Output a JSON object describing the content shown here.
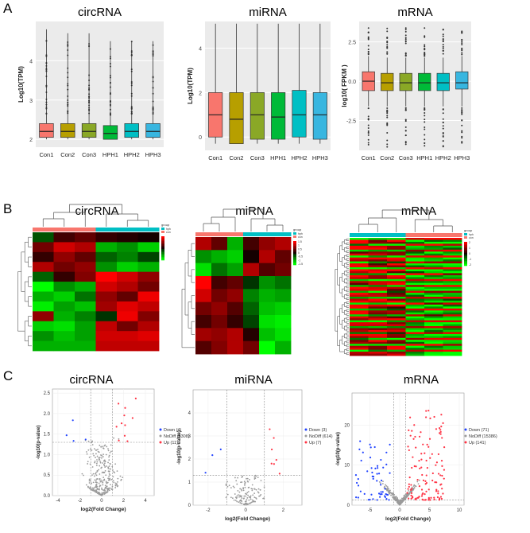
{
  "panels": {
    "A": "A",
    "B": "B",
    "C": "C"
  },
  "colors": {
    "box": [
      "#f8766d",
      "#b79f00",
      "#8aa826",
      "#00ba38",
      "#00bfc4",
      "#38b6e0"
    ],
    "heat_low": "#00ff00",
    "heat_high": "#ff0000",
    "group_con": "#f8766d",
    "group_hph": "#00bfc4",
    "down": "#2244ff",
    "up": "#ff3344",
    "nodiff": "#9a9a9a"
  },
  "chart_data": [
    {
      "type": "box",
      "panel": "A",
      "title": "circRNA",
      "ylabel": "Log10(TPM)",
      "yticks": [
        "2",
        "3",
        "4"
      ],
      "ylim": [
        1.8,
        5
      ],
      "categories": [
        "Con1",
        "Con2",
        "Con3",
        "HPH1",
        "HPH2",
        "HPH3"
      ],
      "boxes": [
        {
          "whisker_low": 2.0,
          "q1": 2.05,
          "median": 2.2,
          "q3": 2.4,
          "whisker_high": 4.8
        },
        {
          "whisker_low": 2.0,
          "q1": 2.05,
          "median": 2.2,
          "q3": 2.4,
          "whisker_high": 4.7
        },
        {
          "whisker_low": 2.0,
          "q1": 2.05,
          "median": 2.2,
          "q3": 2.4,
          "whisker_high": 4.7
        },
        {
          "whisker_low": 2.0,
          "q1": 2.0,
          "median": 2.15,
          "q3": 2.35,
          "whisker_high": 4.5
        },
        {
          "whisker_low": 2.0,
          "q1": 2.05,
          "median": 2.2,
          "q3": 2.4,
          "whisker_high": 4.5
        },
        {
          "whisker_low": 2.0,
          "q1": 2.05,
          "median": 2.2,
          "q3": 2.4,
          "whisker_high": 4.5
        }
      ]
    },
    {
      "type": "box",
      "panel": "A",
      "title": "miRNA",
      "ylabel": "Log10(TPM)",
      "yticks": [
        "0",
        "2",
        "4"
      ],
      "ylim": [
        -0.6,
        5.2
      ],
      "categories": [
        "Con1",
        "Con2",
        "Con3",
        "HPH1",
        "HPH2",
        "HPH3"
      ],
      "boxes": [
        {
          "whisker_low": -0.3,
          "q1": 0.0,
          "median": 1.0,
          "q3": 2.0,
          "whisker_high": 5.1
        },
        {
          "whisker_low": -0.3,
          "q1": -0.3,
          "median": 0.8,
          "q3": 2.0,
          "whisker_high": 5.1
        },
        {
          "whisker_low": -0.3,
          "q1": -0.1,
          "median": 1.0,
          "q3": 2.0,
          "whisker_high": 5.1
        },
        {
          "whisker_low": -0.3,
          "q1": -0.1,
          "median": 0.9,
          "q3": 2.0,
          "whisker_high": 5.1
        },
        {
          "whisker_low": -0.3,
          "q1": 0.0,
          "median": 1.0,
          "q3": 2.1,
          "whisker_high": 5.1
        },
        {
          "whisker_low": -0.3,
          "q1": -0.1,
          "median": 1.0,
          "q3": 2.0,
          "whisker_high": 5.1
        }
      ]
    },
    {
      "type": "box",
      "panel": "A",
      "title": "mRNA",
      "ylabel": "log10( FPKM )",
      "yticks": [
        "-2.5",
        "0.0",
        "2.5"
      ],
      "ylim": [
        -4.4,
        3.8
      ],
      "categories": [
        "Con1",
        "Con2",
        "Con3",
        "HPH1",
        "HPH2",
        "HPH3"
      ],
      "boxes": [
        {
          "whisker_low": -1.6,
          "q1": -0.6,
          "median": 0.0,
          "q3": 0.6,
          "whisker_high": 1.6
        },
        {
          "whisker_low": -1.6,
          "q1": -0.6,
          "median": -0.1,
          "q3": 0.5,
          "whisker_high": 1.5
        },
        {
          "whisker_low": -1.6,
          "q1": -0.6,
          "median": -0.1,
          "q3": 0.5,
          "whisker_high": 1.5
        },
        {
          "whisker_low": -1.6,
          "q1": -0.6,
          "median": -0.1,
          "q3": 0.5,
          "whisker_high": 1.5
        },
        {
          "whisker_low": -1.6,
          "q1": -0.6,
          "median": -0.1,
          "q3": 0.5,
          "whisker_high": 1.5
        },
        {
          "whisker_low": -1.6,
          "q1": -0.5,
          "median": -0.1,
          "q3": 0.6,
          "whisker_high": 1.6
        }
      ]
    },
    {
      "type": "heatmap",
      "panel": "B",
      "title": "circRNA",
      "legend_title": "group",
      "legend_labels": [
        "hph",
        "con"
      ],
      "scale_labels": [],
      "values": [
        [
          -0.4,
          0.3,
          0.5,
          0.2,
          0.1,
          0.0
        ],
        [
          0.6,
          1.2,
          1.0,
          -1.0,
          -0.8,
          -1.2
        ],
        [
          0.2,
          0.8,
          0.5,
          -0.5,
          -0.7,
          -0.3
        ],
        [
          1.0,
          0.6,
          0.8,
          -0.8,
          -1.2,
          -1.0
        ],
        [
          -0.5,
          0.2,
          0.7,
          1.5,
          1.2,
          0.8
        ],
        [
          -1.5,
          -0.8,
          -1.0,
          1.2,
          1.0,
          0.6
        ],
        [
          -1.0,
          -1.2,
          -0.6,
          0.8,
          0.5,
          1.4
        ],
        [
          -1.4,
          -0.9,
          -1.1,
          0.9,
          1.3,
          1.1
        ],
        [
          0.8,
          -1.0,
          -0.7,
          -0.2,
          1.4,
          0.7
        ],
        [
          -1.2,
          -1.3,
          -0.9,
          1.1,
          0.6,
          1.0
        ],
        [
          -0.8,
          -1.1,
          -0.9,
          1.2,
          1.2,
          1.3
        ],
        [
          -1.0,
          -1.0,
          -1.0,
          1.1,
          1.1,
          1.1
        ]
      ]
    },
    {
      "type": "heatmap",
      "panel": "B",
      "title": "miRNA",
      "legend_title": "group",
      "legend_labels": [
        "hph",
        "con"
      ],
      "scale_labels": [
        "1.5",
        "1",
        "0.5",
        "0",
        "-0.5",
        "-1",
        "-1.5"
      ],
      "values": [
        [
          1.0,
          0.5,
          -1.0,
          0.3,
          0.8,
          1.0
        ],
        [
          -0.8,
          -1.0,
          -1.2,
          0.0,
          1.0,
          0.5
        ],
        [
          -1.3,
          -0.6,
          -0.9,
          1.0,
          0.4,
          0.6
        ],
        [
          1.5,
          0.3,
          0.5,
          -0.2,
          -0.8,
          -0.6
        ],
        [
          1.2,
          0.6,
          0.8,
          -0.7,
          -1.0,
          -0.9
        ],
        [
          0.6,
          0.8,
          0.4,
          -0.5,
          -1.1,
          -1.2
        ],
        [
          0.3,
          0.6,
          0.2,
          -0.3,
          -1.3,
          -1.4
        ],
        [
          0.9,
          0.8,
          1.0,
          0.1,
          -1.1,
          -1.3
        ],
        [
          0.4,
          0.7,
          1.0,
          0.6,
          -1.5,
          -1.0
        ]
      ]
    },
    {
      "type": "heatmap",
      "panel": "B",
      "title": "mRNA",
      "legend_title": "group",
      "legend_labels": [
        "hph",
        "con"
      ],
      "scale_labels": [
        "2",
        "1",
        "0",
        "-1",
        "-2"
      ],
      "rows": 60,
      "cols": 6
    },
    {
      "type": "scatter",
      "panel": "C",
      "title": "circRNA",
      "xlabel": "log2(Fold Change)",
      "ylabel": "-log10(p-value)",
      "xlim": [
        -4.5,
        4.8
      ],
      "ylim": [
        0,
        2.6
      ],
      "xticks": [
        "-4",
        "-2",
        "0",
        "2",
        "4"
      ],
      "yticks": [
        "0.0",
        "0.5",
        "1.0",
        "1.5",
        "2.0",
        "2.5"
      ],
      "threshold_y": 1.3,
      "threshold_x": [
        -1,
        1
      ],
      "legend": [
        "Down (4)",
        "NoDiff (8308)",
        "Up (11)"
      ]
    },
    {
      "type": "scatter",
      "panel": "C",
      "title": "miRNA",
      "xlabel": "log2(Fold Change)",
      "ylabel": "-log10(p-value)",
      "xlim": [
        -2.8,
        3.0
      ],
      "ylim": [
        0,
        5
      ],
      "xticks": [
        "-2",
        "0",
        "2"
      ],
      "yticks": [
        "0",
        "1",
        "2",
        "3",
        "4"
      ],
      "threshold_y": 1.3,
      "threshold_x": [
        -1,
        1
      ],
      "legend": [
        "Down (3)",
        "NoDiff (614)",
        "Up (7)"
      ]
    },
    {
      "type": "scatter",
      "panel": "C",
      "title": "mRNA",
      "xlabel": "log2(Fold Change)",
      "ylabel": "-log10(p-value)",
      "xlim": [
        -8,
        10.8
      ],
      "ylim": [
        0,
        28
      ],
      "xticks": [
        "-5",
        "0",
        "5",
        "10"
      ],
      "yticks": [
        "0",
        "10",
        "20"
      ],
      "threshold_y": 1.3,
      "threshold_x": [
        -1,
        1
      ],
      "legend": [
        "Down (71)",
        "NoDiff (15386)",
        "Up (141)"
      ]
    }
  ]
}
